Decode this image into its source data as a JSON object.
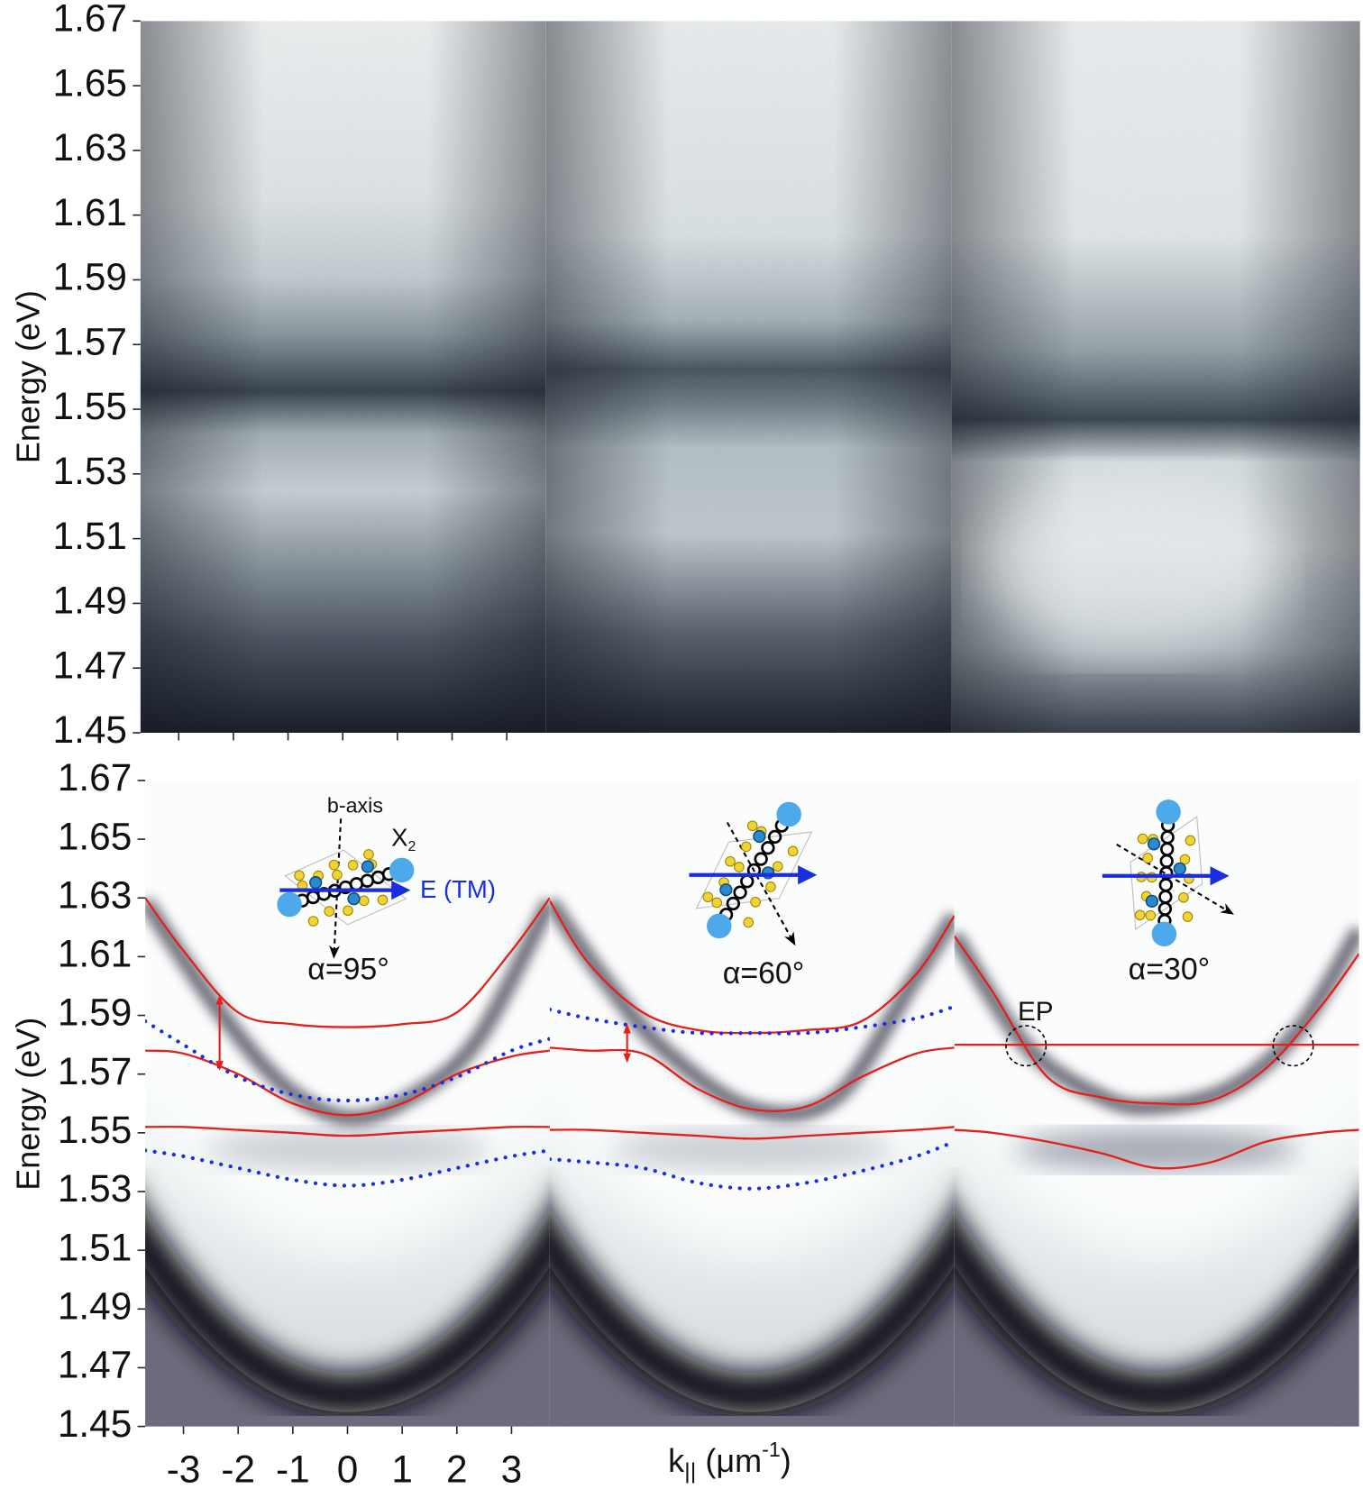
{
  "chart_data": [
    {
      "type": "image",
      "ylabel": "Energy (eV)",
      "ylim": [
        1.45,
        1.67
      ],
      "yticks": [
        1.45,
        1.47,
        1.49,
        1.51,
        1.53,
        1.55,
        1.57,
        1.59,
        1.61,
        1.63,
        1.65,
        1.67
      ]
    },
    {
      "type": "line",
      "ylabel": "Energy (eV)",
      "ylim": [
        1.45,
        1.67
      ],
      "yticks": [
        1.45,
        1.47,
        1.49,
        1.51,
        1.53,
        1.55,
        1.57,
        1.59,
        1.61,
        1.63,
        1.65,
        1.67
      ],
      "xlim": [
        -3.7,
        3.7
      ],
      "xticks": [
        -3,
        -2,
        -1,
        0,
        1,
        2,
        3
      ],
      "xlabel": {
        "main": "k",
        "sub": "||",
        "unit": " (μm",
        "sup": "-1",
        "close": ")"
      },
      "x": [
        -3.7,
        -3,
        -2,
        -1,
        0,
        1,
        2,
        3,
        3.7
      ],
      "panels": [
        {
          "title": "α=95°",
          "labels": {
            "axis": "b-axis",
            "exciton": "X",
            "exciton_sub": "2",
            "field": "E (TM)"
          },
          "series": [
            {
              "color": "#e3201c",
              "style": "solid",
              "values": [
                1.63,
                1.612,
                1.591,
                1.587,
                1.586,
                1.587,
                1.591,
                1.612,
                1.63
              ]
            },
            {
              "color": "#e3201c",
              "style": "solid",
              "values": [
                1.578,
                1.577,
                1.57,
                1.56,
                1.556,
                1.56,
                1.57,
                1.576,
                1.578
              ]
            },
            {
              "color": "#e3201c",
              "style": "solid",
              "values": [
                1.552,
                1.552,
                1.551,
                1.55,
                1.549,
                1.55,
                1.551,
                1.552,
                1.552
              ]
            },
            {
              "color": "#1a2ee0",
              "style": "dotted",
              "values": [
                1.588,
                1.58,
                1.569,
                1.563,
                1.561,
                1.563,
                1.569,
                1.578,
                1.582
              ]
            },
            {
              "color": "#1a2ee0",
              "style": "dotted",
              "values": [
                1.544,
                1.542,
                1.538,
                1.534,
                1.532,
                1.534,
                1.538,
                1.542,
                1.544
              ]
            }
          ]
        },
        {
          "title": "α=60°",
          "series": [
            {
              "color": "#e3201c",
              "style": "solid",
              "values": [
                1.629,
                1.608,
                1.591,
                1.585,
                1.584,
                1.585,
                1.588,
                1.604,
                1.624
              ]
            },
            {
              "color": "#e3201c",
              "style": "solid",
              "values": [
                1.579,
                1.578,
                1.577,
                1.565,
                1.558,
                1.559,
                1.569,
                1.577,
                1.579
              ]
            },
            {
              "color": "#e3201c",
              "style": "solid",
              "values": [
                1.551,
                1.551,
                1.55,
                1.549,
                1.548,
                1.549,
                1.55,
                1.551,
                1.552
              ]
            },
            {
              "color": "#1a2ee0",
              "style": "dotted",
              "values": [
                1.592,
                1.589,
                1.586,
                1.584,
                1.584,
                1.584,
                1.586,
                1.589,
                1.593
              ]
            },
            {
              "color": "#1a2ee0",
              "style": "dotted",
              "values": [
                1.541,
                1.54,
                1.538,
                1.533,
                1.531,
                1.533,
                1.537,
                1.542,
                1.547
              ]
            }
          ]
        },
        {
          "title": "α=30°",
          "labels": {
            "point": "EP"
          },
          "series": [
            {
              "color": "#e3201c",
              "style": "solid",
              "values": [
                1.58,
                1.58,
                1.58,
                1.58,
                1.58,
                1.58,
                1.58,
                1.58,
                1.58
              ]
            },
            {
              "color": "#e3201c",
              "style": "solid",
              "values": [
                1.617,
                1.598,
                1.569,
                1.562,
                1.56,
                1.561,
                1.572,
                1.593,
                1.611
              ]
            },
            {
              "color": "#e3201c",
              "style": "solid",
              "values": [
                1.551,
                1.55,
                1.547,
                1.543,
                1.538,
                1.54,
                1.547,
                1.55,
                1.551
              ]
            }
          ]
        }
      ]
    }
  ]
}
